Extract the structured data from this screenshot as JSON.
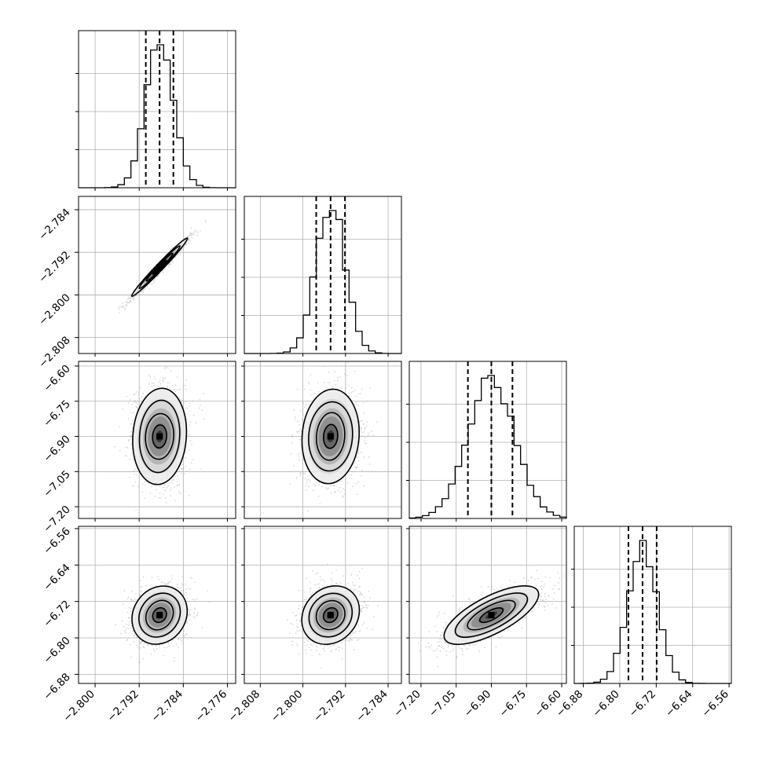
{
  "chart_data": {
    "type": "corner",
    "title": "",
    "grid": true,
    "colors": {
      "ink": "#000000",
      "grid": "#b0b0b0",
      "scatter": "#b5b5b5"
    },
    "parameters": [
      {
        "index": 0,
        "label": "",
        "range": [
          -2.803,
          -2.7745
        ],
        "ticks": [
          -2.8,
          -2.792,
          -2.784,
          -2.776
        ],
        "tick_labels": [
          "−2.800",
          "−2.792",
          "−2.784",
          "−2.776"
        ],
        "mean": -2.7883,
        "std": 0.0025,
        "quantiles": [
          -2.7908,
          -2.7883,
          -2.7858
        ]
      },
      {
        "index": 1,
        "label": "",
        "range": [
          -2.811,
          -2.7815
        ],
        "ticks": [
          -2.808,
          -2.8,
          -2.792,
          -2.784
        ],
        "tick_labels": [
          "−2.808",
          "−2.800",
          "−2.792",
          "−2.784"
        ],
        "mean": -2.7948,
        "std": 0.0027,
        "quantiles": [
          -2.7975,
          -2.7948,
          -2.7921
        ]
      },
      {
        "index": 2,
        "label": "",
        "range": [
          -7.25,
          -6.58
        ],
        "ticks": [
          -7.2,
          -7.05,
          -6.9,
          -6.75,
          -6.6
        ],
        "tick_labels": [
          "−7.20",
          "−7.05",
          "−6.90",
          "−6.75",
          "−6.60"
        ],
        "mean": -6.9,
        "std": 0.1,
        "quantiles": [
          -7.0,
          -6.9,
          -6.81
        ]
      },
      {
        "index": 3,
        "label": "",
        "range": [
          -6.9,
          -6.555
        ],
        "ticks": [
          -6.88,
          -6.8,
          -6.72,
          -6.64,
          -6.56
        ],
        "tick_labels": [
          "−6.88",
          "−6.80",
          "−6.72",
          "−6.64",
          "−6.56"
        ],
        "mean": -6.75,
        "std": 0.032,
        "quantiles": [
          -6.781,
          -6.75,
          -6.719
        ]
      }
    ],
    "correlations": [
      {
        "pair": [
          1,
          0
        ],
        "r": 0.985
      },
      {
        "pair": [
          2,
          0
        ],
        "r": 0.08
      },
      {
        "pair": [
          2,
          1
        ],
        "r": 0.08
      },
      {
        "pair": [
          3,
          0
        ],
        "r": 0.15
      },
      {
        "pair": [
          3,
          1
        ],
        "r": 0.15
      },
      {
        "pair": [
          3,
          2
        ],
        "r": 0.7
      }
    ],
    "contour_levels": [
      0.5,
      1.0,
      1.5,
      2.0
    ],
    "density_colormap": "greys"
  }
}
